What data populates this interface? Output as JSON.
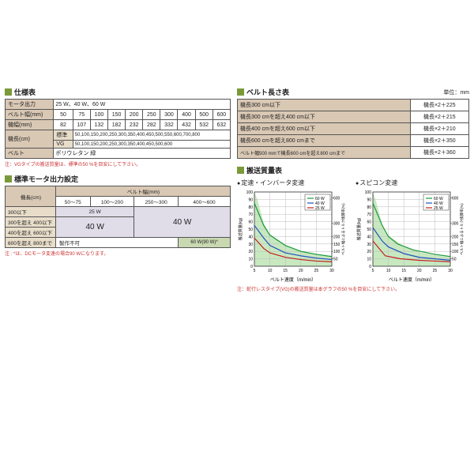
{
  "spec": {
    "title": "仕様表",
    "rows": [
      {
        "label": "モータ出力",
        "value": "25 W、40 W、60 W"
      },
      {
        "label": "ベルト幅(mm)",
        "cells": [
          "50",
          "75",
          "100",
          "150",
          "200",
          "250",
          "300",
          "400",
          "500",
          "600"
        ]
      },
      {
        "label": "機幅(mm)",
        "cells": [
          "82",
          "107",
          "132",
          "182",
          "232",
          "282",
          "332",
          "432",
          "532",
          "632"
        ]
      },
      {
        "label": "機長(cm)",
        "sub1": "標準",
        "val1": "50,100,150,200,250,300,350,400,450,500,550,600,700,800",
        "sub2": "VG",
        "val2": "50,100,150,200,250,300,350,400,450,500,600"
      },
      {
        "label": "ベルト",
        "value": "ポリウレタン 緑"
      }
    ],
    "note": "注：VGタイプの搬送質量は、標準の50 %を目安にして下さい。"
  },
  "motor": {
    "title": "標準モータ出力設定",
    "rowhdr": "機長(cm)",
    "colhdr": "ベルト幅(mm)",
    "cols": [
      "50～75",
      "100～200",
      "250～300",
      "400～600"
    ],
    "rows": [
      "300以下",
      "300を超え 400以下",
      "400を超え 600以下",
      "600を超え 800まで"
    ],
    "cell25": "25 W",
    "cell40": "40 W",
    "cell60": "60 W(90 W)*",
    "cellNA": "製作不可",
    "note": "注 : *は、DCモータ変速の場合90 Wになります。"
  },
  "beltlen": {
    "title": "ベルト長さ表",
    "unit": "単位：mm",
    "rows": [
      {
        "l": "機長300 cm以下",
        "r": "機長×2＋225"
      },
      {
        "l": "機長300 cmを超え400 cm以下",
        "r": "機長×2＋215"
      },
      {
        "l": "機長400 cmを超え600 cm以下",
        "r": "機長×2＋210"
      },
      {
        "l": "機長600 cmを超え800 cmまで",
        "r": "機長×2＋350"
      },
      {
        "l": "ベルト幅500 mmで機長600 cmを超え800 cmまで",
        "r": "機長×2＋360"
      }
    ]
  },
  "mass": {
    "title": "搬送質量表",
    "chart1": {
      "title": "定速・インバータ変速"
    },
    "chart2": {
      "title": "スピコン変速"
    },
    "xlabel": "ベルト速度（m/min）",
    "ylabel_l": "搬送質量(kg)",
    "ylabel_r": "ベルト幅によるトルク換算率(%)",
    "legend": [
      "60 W",
      "40 W",
      "25 W"
    ],
    "legend_colors": [
      "#1a9a3a",
      "#2050c0",
      "#c02020"
    ],
    "xticks": [
      5,
      10,
      15,
      20,
      25,
      30
    ],
    "yticks_l": [
      0,
      10,
      20,
      30,
      40,
      50,
      60,
      70,
      80,
      90,
      100
    ],
    "yticks_r": [
      50,
      100,
      150,
      200,
      300,
      600
    ],
    "series1": {
      "60W": [
        [
          5,
          85
        ],
        [
          8,
          55
        ],
        [
          10,
          42
        ],
        [
          15,
          28
        ],
        [
          20,
          20
        ],
        [
          25,
          16
        ],
        [
          30,
          13
        ]
      ],
      "40W": [
        [
          5,
          55
        ],
        [
          8,
          38
        ],
        [
          10,
          28
        ],
        [
          15,
          18
        ],
        [
          20,
          14
        ],
        [
          25,
          11
        ],
        [
          30,
          9
        ]
      ],
      "25W": [
        [
          5,
          38
        ],
        [
          8,
          24
        ],
        [
          10,
          18
        ],
        [
          15,
          12
        ],
        [
          20,
          9
        ],
        [
          25,
          7
        ],
        [
          30,
          6
        ]
      ],
      "env": [
        [
          5,
          100
        ],
        [
          6,
          90
        ],
        [
          8,
          58
        ],
        [
          10,
          43
        ],
        [
          15,
          28
        ],
        [
          20,
          20
        ],
        [
          25,
          16
        ],
        [
          30,
          13
        ],
        [
          30,
          0
        ],
        [
          5,
          0
        ]
      ]
    },
    "series2": {
      "60W": [
        [
          5,
          85
        ],
        [
          8,
          55
        ],
        [
          10,
          40
        ],
        [
          13,
          30
        ],
        [
          18,
          22
        ],
        [
          25,
          16
        ],
        [
          30,
          13
        ]
      ],
      "40W": [
        [
          5,
          52
        ],
        [
          8,
          34
        ],
        [
          10,
          26
        ],
        [
          15,
          17
        ],
        [
          20,
          12
        ],
        [
          25,
          10
        ],
        [
          30,
          8
        ]
      ],
      "25W": [
        [
          5,
          34
        ],
        [
          9,
          14
        ],
        [
          14,
          10
        ],
        [
          20,
          8
        ],
        [
          25,
          7
        ],
        [
          30,
          6
        ]
      ],
      "env": [
        [
          5,
          100
        ],
        [
          6,
          88
        ],
        [
          8,
          56
        ],
        [
          10,
          41
        ],
        [
          15,
          27
        ],
        [
          20,
          19
        ],
        [
          25,
          15
        ],
        [
          30,
          12
        ],
        [
          30,
          0
        ],
        [
          5,
          0
        ]
      ]
    },
    "note": "注：蛇行レスタイプ(VG)の搬送質量は本グラフの50 %を目安にして下さい。"
  }
}
